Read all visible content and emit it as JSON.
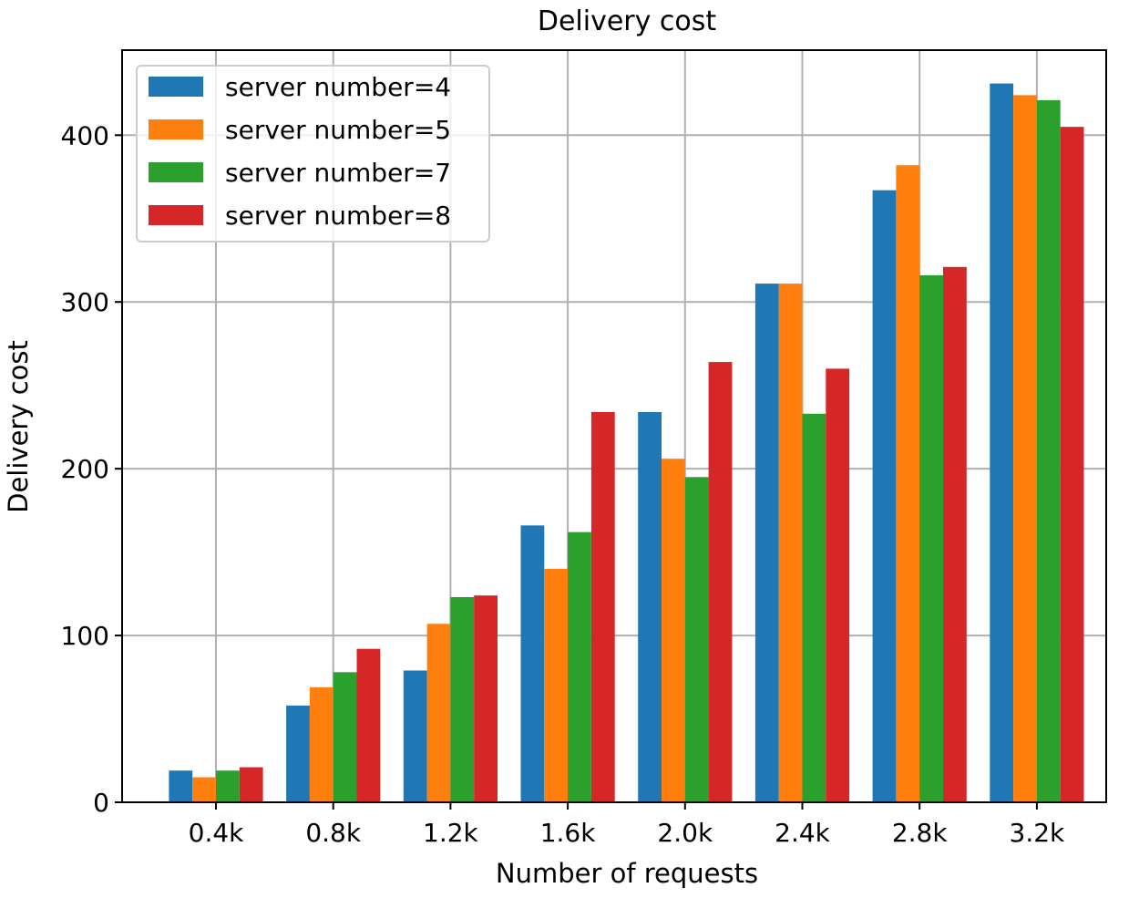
{
  "chart_data": {
    "type": "bar",
    "title": "Delivery cost",
    "xlabel": "Number of requests",
    "ylabel": "Delivery cost",
    "categories": [
      "0.4k",
      "0.8k",
      "1.2k",
      "1.6k",
      "2.0k",
      "2.4k",
      "2.8k",
      "3.2k"
    ],
    "ylim": [
      0,
      451
    ],
    "yticks": [
      0,
      100,
      200,
      300,
      400
    ],
    "grid": true,
    "legend_position": "top-left",
    "series": [
      {
        "name": "server number=4",
        "color": "#1f77b4",
        "values": [
          19,
          58,
          79,
          166,
          234,
          311,
          367,
          431
        ]
      },
      {
        "name": "server number=5",
        "color": "#ff7f0e",
        "values": [
          15,
          69,
          107,
          140,
          206,
          311,
          382,
          424
        ]
      },
      {
        "name": "server number=7",
        "color": "#2ca02c",
        "values": [
          19,
          78,
          123,
          162,
          195,
          233,
          316,
          421
        ]
      },
      {
        "name": "server number=8",
        "color": "#d62728",
        "values": [
          21,
          92,
          124,
          234,
          264,
          260,
          321,
          405
        ]
      }
    ]
  }
}
